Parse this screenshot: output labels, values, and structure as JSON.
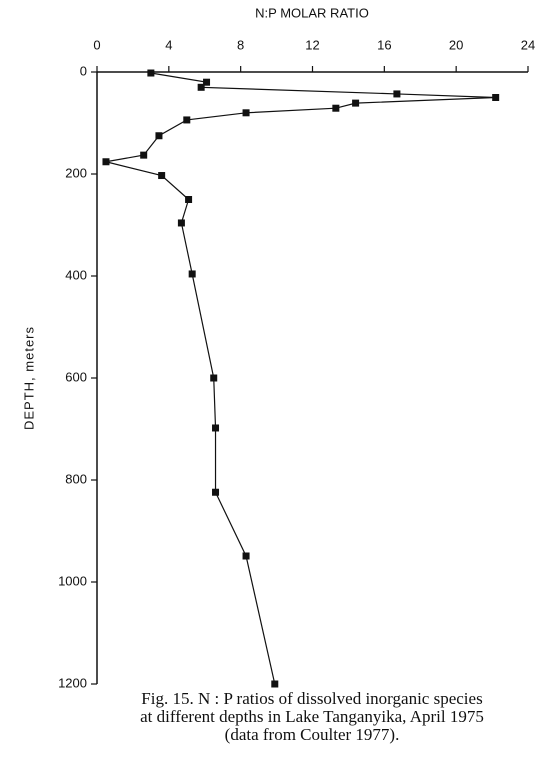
{
  "chart_data": {
    "type": "line",
    "xlabel": "N:P MOLAR RATIO",
    "ylabel": "DEPTH, meters",
    "x": [
      3.0,
      6.1,
      5.8,
      16.7,
      22.2,
      14.4,
      13.3,
      8.3,
      5.0,
      3.45,
      2.6,
      0.5,
      3.6,
      5.1,
      4.7,
      5.3,
      6.5,
      6.6,
      6.6,
      8.3,
      9.9
    ],
    "values": [
      2,
      20,
      30,
      43,
      50,
      61,
      71,
      80,
      94,
      125,
      163,
      176,
      203,
      250,
      296,
      396,
      600,
      698,
      824,
      949,
      1200
    ],
    "color": "#111111",
    "marker": "square",
    "xlim": [
      0,
      24
    ],
    "xticks": [
      0,
      4,
      8,
      12,
      16,
      20,
      24
    ],
    "ylim": [
      0,
      1200
    ],
    "yticks": [
      0,
      200,
      400,
      600,
      800,
      1000,
      1200
    ],
    "y_inverted": true,
    "x_axis_position": "top",
    "caption": [
      "Fig. 15.   N : P ratios of dissolved inorganic species",
      "at different depths in Lake Tanganyika, April 1975",
      "(data from Coulter 1977)."
    ]
  }
}
